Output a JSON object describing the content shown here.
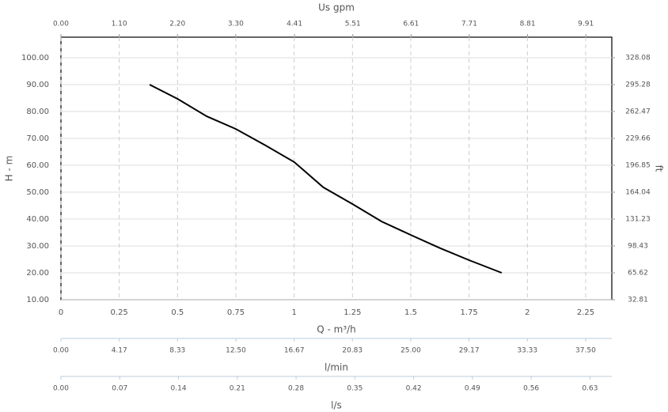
{
  "chart_data": {
    "type": "line",
    "x_label": "Q - m³/h",
    "y_label": "H - m",
    "y2_label": "ft",
    "x": [
      0.38,
      0.5,
      0.625,
      0.75,
      0.875,
      1.0,
      1.125,
      1.25,
      1.375,
      1.5,
      1.625,
      1.75,
      1.89
    ],
    "series": [
      {
        "color": "#000000",
        "values": [
          90,
          84.7,
          78.2,
          73.5,
          67.5,
          61.2,
          51.8,
          45.6,
          39.1,
          34.1,
          29.2,
          24.7,
          20
        ]
      }
    ],
    "xlim": [
      0,
      2.362
    ],
    "xticks": [
      0,
      0.25,
      0.5,
      0.75,
      1,
      1.25,
      1.5,
      1.75,
      2,
      2.25
    ],
    "ylim": [
      10,
      107.65
    ],
    "yticks": [
      {
        "value": 10,
        "label": "10.00"
      },
      {
        "value": 20,
        "label": "20.00"
      },
      {
        "value": 30,
        "label": "30.00"
      },
      {
        "value": 40,
        "label": "40.00"
      },
      {
        "value": 50,
        "label": "50.00"
      },
      {
        "value": 60,
        "label": "60.00"
      },
      {
        "value": 70,
        "label": "70.00"
      },
      {
        "value": 80,
        "label": "80.00"
      },
      {
        "value": 90,
        "label": "90.00"
      },
      {
        "value": 100,
        "label": "100.00"
      }
    ],
    "y2lim": [
      32.81,
      353.18
    ],
    "y2ticks": [
      32.81,
      65.62,
      98.43,
      131.23,
      164.04,
      196.85,
      229.66,
      262.47,
      295.28,
      328.08
    ],
    "grid": true,
    "top_axis": {
      "label": "Us gpm",
      "lim": [
        0,
        10.4
      ],
      "ticks": [
        {
          "value": 0,
          "label": "0.00"
        },
        {
          "value": 1.1,
          "label": "1.10"
        },
        {
          "value": 2.2,
          "label": "2.20"
        },
        {
          "value": 3.3,
          "label": "3.30"
        },
        4.41,
        5.51,
        6.61,
        7.71,
        8.81,
        9.91
      ]
    },
    "extra_axes": [
      {
        "label": "l/min",
        "lim": [
          0,
          39.37
        ],
        "ticks": [
          {
            "value": 0,
            "label": "0.00"
          },
          4.17,
          8.33,
          {
            "value": 12.5,
            "label": "12.50"
          },
          16.67,
          20.83,
          {
            "value": 25,
            "label": "25.00"
          },
          29.17,
          33.33,
          {
            "value": 37.5,
            "label": "37.50"
          }
        ]
      },
      {
        "label": "l/s",
        "lim": [
          0,
          0.656
        ],
        "ticks": [
          {
            "value": 0,
            "label": "0.00"
          },
          0.07,
          0.14,
          0.21,
          0.28,
          0.35,
          0.42,
          0.49,
          0.56,
          0.63
        ]
      }
    ]
  }
}
